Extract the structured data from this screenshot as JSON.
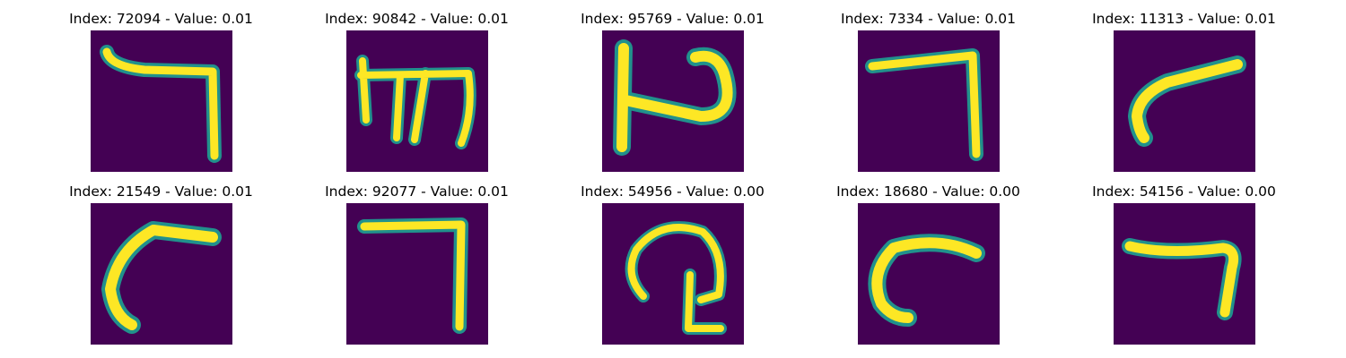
{
  "colors": {
    "background": "#440154",
    "stroke_edge": "#21918c",
    "stroke_core": "#fde725"
  },
  "panels": [
    {
      "title": "Index: 72094 - Value: 0.01",
      "glyph": "hook-right-down"
    },
    {
      "title": "Index: 90842 - Value: 0.01",
      "glyph": "trident-shape"
    },
    {
      "title": "Index: 95769 - Value: 0.01",
      "glyph": "loop-shape"
    },
    {
      "title": "Index: 7334 - Value: 0.01",
      "glyph": "corner-right-down"
    },
    {
      "title": "Index: 11313 - Value: 0.01",
      "glyph": "curved-stroke"
    },
    {
      "title": "Index: 21549 - Value: 0.01",
      "glyph": "curved-arc"
    },
    {
      "title": "Index: 92077 - Value: 0.01",
      "glyph": "corner-right-down"
    },
    {
      "title": "Index: 54956 - Value: 0.00",
      "glyph": "loop-with-stem"
    },
    {
      "title": "Index: 18680 - Value: 0.00",
      "glyph": "c-arc"
    },
    {
      "title": "Index: 54156 - Value: 0.00",
      "glyph": "hook-right-down"
    }
  ]
}
